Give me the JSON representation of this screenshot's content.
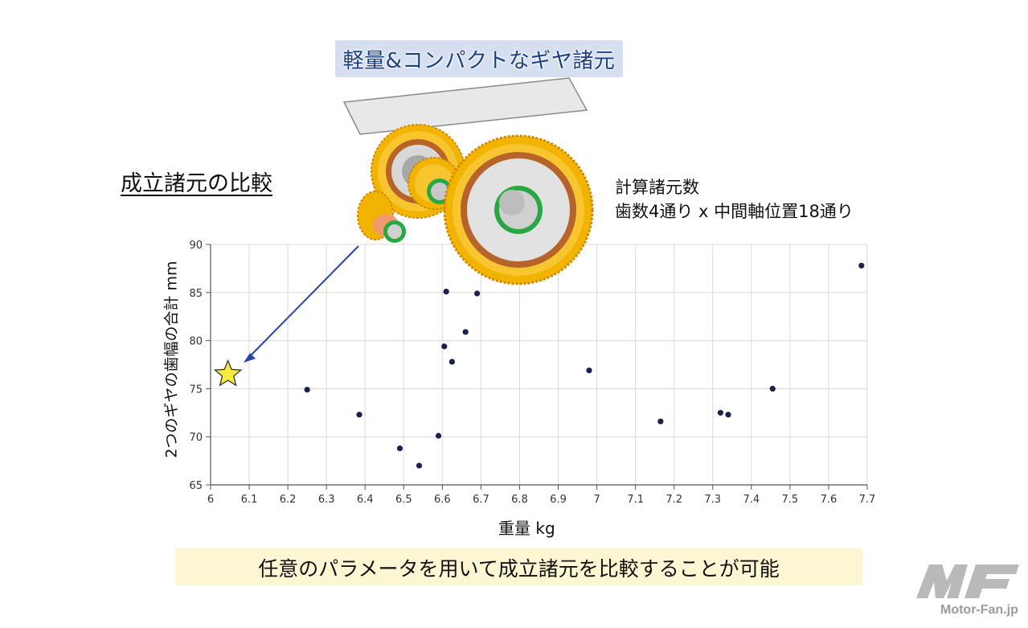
{
  "header": {
    "title": "軽量&コンパクトなギヤ諸元",
    "section_label": "成立諸元の比較",
    "calc_title": "計算諸元数",
    "calc_detail": "歯数4通り x 中間軸位置18通り"
  },
  "footer": {
    "message": "任意のパラメータを用いて成立諸元を比較することが可能",
    "site": "Motor-Fan.jp"
  },
  "colors": {
    "point": "#1b2250",
    "grid": "#dadada",
    "title_band": "#d5dfef",
    "banner": "#fcf6d2",
    "star_fill": "#f5ec3c",
    "gear_gold": "#f2b400",
    "arrow": "#2b45a8"
  },
  "icons": {
    "star": "star-marker-icon",
    "gears": "gear-assembly-illustration",
    "logo": "mf-logo-icon"
  },
  "chart_data": {
    "type": "scatter",
    "title": "",
    "xlabel": "重量 kg",
    "ylabel": "2つのギヤの歯幅の合計 mm",
    "xlim": [
      6,
      7.7
    ],
    "ylim": [
      65,
      90
    ],
    "xticks": [
      "6",
      "6.1",
      "6.2",
      "6.3",
      "6.4",
      "6.5",
      "6.6",
      "6.7",
      "6.8",
      "6.9",
      "7",
      "7.1",
      "7.2",
      "7.3",
      "7.4",
      "7.5",
      "7.6",
      "7.7"
    ],
    "yticks": [
      "65",
      "70",
      "75",
      "80",
      "85",
      "90"
    ],
    "grid": true,
    "points": [
      {
        "x": 6.25,
        "y": 74.9
      },
      {
        "x": 6.385,
        "y": 72.3
      },
      {
        "x": 6.49,
        "y": 68.8
      },
      {
        "x": 6.54,
        "y": 67.0
      },
      {
        "x": 6.59,
        "y": 70.1
      },
      {
        "x": 6.605,
        "y": 79.4
      },
      {
        "x": 6.61,
        "y": 85.1
      },
      {
        "x": 6.625,
        "y": 77.8
      },
      {
        "x": 6.66,
        "y": 80.9
      },
      {
        "x": 6.69,
        "y": 84.9
      },
      {
        "x": 6.98,
        "y": 76.9
      },
      {
        "x": 7.165,
        "y": 71.6
      },
      {
        "x": 7.32,
        "y": 72.5
      },
      {
        "x": 7.34,
        "y": 72.3
      },
      {
        "x": 7.455,
        "y": 75.0
      },
      {
        "x": 7.685,
        "y": 87.8
      }
    ],
    "highlight": {
      "x": 6.045,
      "y": 76.5,
      "marker": "star"
    }
  }
}
